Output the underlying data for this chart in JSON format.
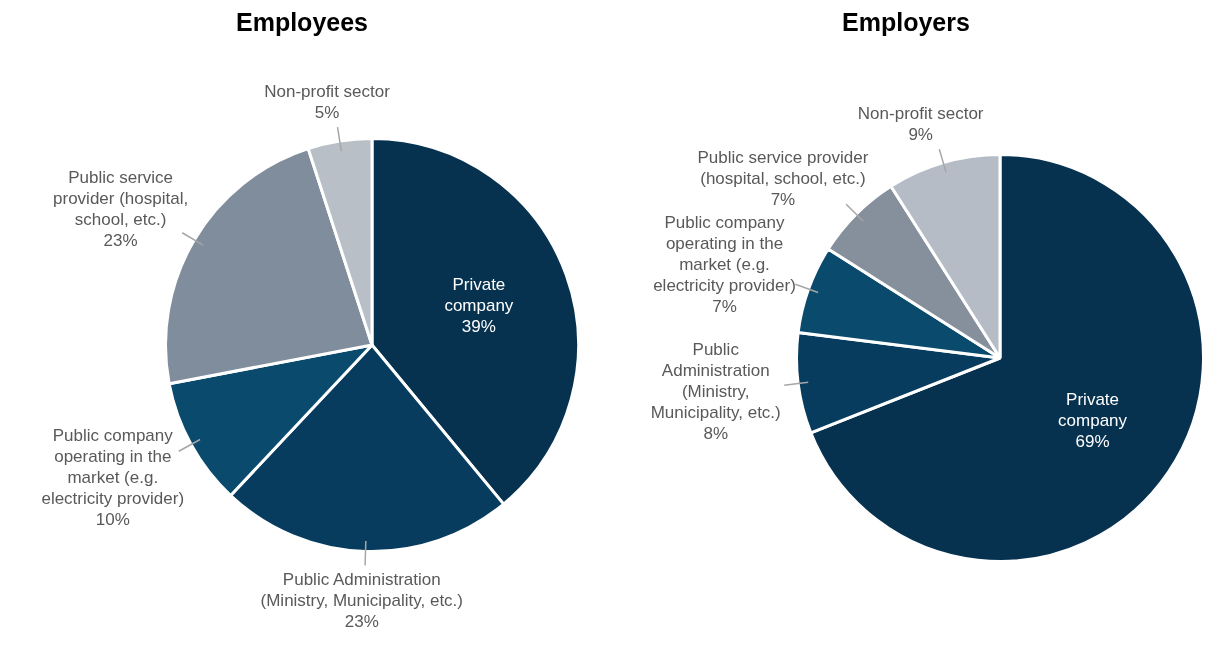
{
  "chart_data": [
    {
      "type": "pie",
      "title": "Employees",
      "categories": [
        "Private company",
        "Public Administration (Ministry, Municipality, etc.)",
        "Public company operating in the market (e.g. electricity provider)",
        "Public service provider (hospital, school, etc.)",
        "Non-profit sector"
      ],
      "values": [
        39,
        23,
        10,
        23,
        5
      ],
      "value_labels": [
        "39%",
        "23%",
        "10%",
        "23%",
        "5%"
      ],
      "colors": [
        "#06324f",
        "#073c5e",
        "#0a4a6d",
        "#808d9c",
        "#b8bfc7"
      ],
      "legend": false
    },
    {
      "type": "pie",
      "title": "Employers",
      "categories": [
        "Private company",
        "Public Administration (Ministry, Municipality, etc.)",
        "Public company operating in the market (e.g. electricity provider)",
        "Public service provider (hospital, school, etc.)",
        "Non-profit sector"
      ],
      "values": [
        69,
        8,
        7,
        7,
        9
      ],
      "value_labels": [
        "69%",
        "8%",
        "7%",
        "7%",
        "9%"
      ],
      "colors": [
        "#06324f",
        "#073c5e",
        "#0a4a6d",
        "#868f9c",
        "#b5bcc5"
      ],
      "legend": false
    }
  ]
}
